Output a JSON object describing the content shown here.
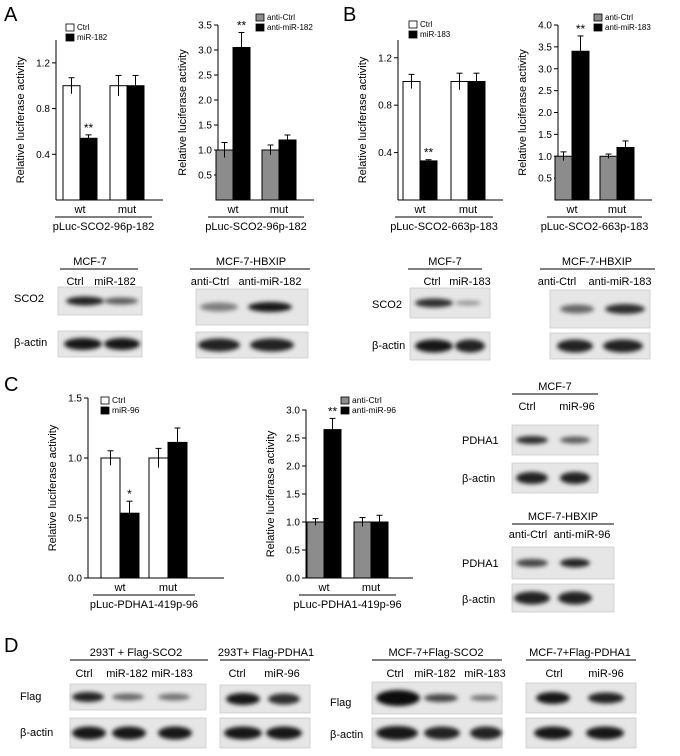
{
  "panel_labels": [
    "A",
    "B",
    "C",
    "D"
  ],
  "y_axis_label": "Relative luciferase activity",
  "chart_data": [
    {
      "id": "A1",
      "type": "bar",
      "panel": "A",
      "categories": [
        "wt",
        "mut"
      ],
      "xlabel": "pLuc-SCO2-96p-182",
      "ylim": [
        0,
        1.4
      ],
      "yticks": [
        0.4,
        0.8,
        1.2
      ],
      "series": [
        {
          "name": "Ctrl",
          "color": "#ffffff",
          "values": [
            1.0,
            1.0
          ],
          "errors": [
            0.07,
            0.09
          ]
        },
        {
          "name": "miR-182",
          "color": "#000000",
          "values": [
            0.54,
            1.0
          ],
          "errors": [
            0.03,
            0.09
          ]
        }
      ],
      "annotations": [
        {
          "series": 1,
          "category": 0,
          "text": "**"
        }
      ]
    },
    {
      "id": "A2",
      "type": "bar",
      "panel": "A",
      "categories": [
        "wt",
        "mut"
      ],
      "xlabel": "pLuc-SCO2-96p-182",
      "ylim": [
        0,
        3.5
      ],
      "yticks": [
        0.5,
        1.0,
        1.5,
        2.0,
        2.5,
        3.0,
        3.5
      ],
      "series": [
        {
          "name": "anti-Ctrl",
          "color": "#8c8c8c",
          "values": [
            1.0,
            1.0
          ],
          "errors": [
            0.15,
            0.1
          ]
        },
        {
          "name": "anti-miR-182",
          "color": "#000000",
          "values": [
            3.05,
            1.2
          ],
          "errors": [
            0.3,
            0.1
          ]
        }
      ],
      "annotations": [
        {
          "series": 1,
          "category": 0,
          "text": "**"
        }
      ]
    },
    {
      "id": "B1",
      "type": "bar",
      "panel": "B",
      "categories": [
        "wt",
        "mut"
      ],
      "xlabel": "pLuc-SCO2-663p-183",
      "ylim": [
        0,
        1.35
      ],
      "yticks": [
        0.4,
        0.8,
        1.2
      ],
      "series": [
        {
          "name": "Ctrl",
          "color": "#ffffff",
          "values": [
            1.0,
            1.0
          ],
          "errors": [
            0.06,
            0.07
          ]
        },
        {
          "name": "miR-183",
          "color": "#000000",
          "values": [
            0.33,
            1.0
          ],
          "errors": [
            0.01,
            0.07
          ]
        }
      ],
      "annotations": [
        {
          "series": 1,
          "category": 0,
          "text": "**"
        }
      ]
    },
    {
      "id": "B2",
      "type": "bar",
      "panel": "B",
      "categories": [
        "wt",
        "mut"
      ],
      "xlabel": "pLuc-SCO2-663p-183",
      "ylim": [
        0,
        4.0
      ],
      "yticks": [
        0.5,
        1.0,
        1.5,
        2.0,
        2.5,
        3.0,
        3.5,
        4.0
      ],
      "series": [
        {
          "name": "anti-Ctrl",
          "color": "#8c8c8c",
          "values": [
            1.0,
            1.0
          ],
          "errors": [
            0.1,
            0.05
          ]
        },
        {
          "name": "anti-miR-183",
          "color": "#000000",
          "values": [
            3.4,
            1.2
          ],
          "errors": [
            0.35,
            0.15
          ]
        }
      ],
      "annotations": [
        {
          "series": 1,
          "category": 0,
          "text": "**"
        }
      ]
    },
    {
      "id": "C1",
      "type": "bar",
      "panel": "C",
      "categories": [
        "wt",
        "mut"
      ],
      "xlabel": "pLuc-PDHA1-419p-96",
      "ylim": [
        0,
        1.5
      ],
      "yticks": [
        0.0,
        0.5,
        1.0,
        1.5
      ],
      "series": [
        {
          "name": "Ctrl",
          "color": "#ffffff",
          "values": [
            1.0,
            1.0
          ],
          "errors": [
            0.06,
            0.08
          ]
        },
        {
          "name": "miR-96",
          "color": "#000000",
          "values": [
            0.54,
            1.13
          ],
          "errors": [
            0.1,
            0.12
          ]
        }
      ],
      "annotations": [
        {
          "series": 1,
          "category": 0,
          "text": "*"
        }
      ]
    },
    {
      "id": "C2",
      "type": "bar",
      "panel": "C",
      "categories": [
        "wt",
        "mut"
      ],
      "xlabel": "pLuc-PDHA1-419p-96",
      "ylim": [
        0,
        3.0
      ],
      "yticks": [
        0.0,
        0.5,
        1.0,
        1.5,
        2.0,
        2.5,
        3.0
      ],
      "series": [
        {
          "name": "anti-Ctrl",
          "color": "#8c8c8c",
          "values": [
            1.0,
            1.0
          ],
          "errors": [
            0.06,
            0.08
          ]
        },
        {
          "name": "anti-miR-96",
          "color": "#000000",
          "values": [
            2.65,
            1.0
          ],
          "errors": [
            0.2,
            0.12
          ]
        }
      ],
      "annotations": [
        {
          "series": 1,
          "category": 0,
          "text": "**"
        }
      ]
    }
  ],
  "blot_groups": [
    {
      "id": "A-blot-1",
      "title": "MCF-7",
      "lanes": [
        "Ctrl",
        "miR-182"
      ],
      "rows": [
        "SCO2",
        "β-actin"
      ]
    },
    {
      "id": "A-blot-2",
      "title": "MCF-7-HBXIP",
      "lanes": [
        "anti-Ctrl",
        "anti-miR-182"
      ],
      "rows": []
    },
    {
      "id": "B-blot-1",
      "title": "MCF-7",
      "lanes": [
        "Ctrl",
        "miR-183"
      ],
      "rows": [
        "SCO2",
        "β-actin"
      ]
    },
    {
      "id": "B-blot-2",
      "title": "MCF-7-HBXIP",
      "lanes": [
        "anti-Ctrl",
        "anti-miR-183"
      ],
      "rows": []
    },
    {
      "id": "C-blot-1",
      "title": "MCF-7",
      "lanes": [
        "Ctrl",
        "miR-96"
      ],
      "rows": [
        "PDHA1",
        "β-actin"
      ]
    },
    {
      "id": "C-blot-2",
      "title": "MCF-7-HBXIP",
      "lanes": [
        "anti-Ctrl",
        "anti-miR-96"
      ],
      "rows": [
        "PDHA1",
        "β-actin"
      ]
    },
    {
      "id": "D-blot-1",
      "title": "293T + Flag-SCO2",
      "lanes": [
        "Ctrl",
        "miR-182",
        "miR-183"
      ],
      "rows": [
        "Flag",
        "β-actin"
      ]
    },
    {
      "id": "D-blot-2",
      "title": "293T+ Flag-PDHA1",
      "lanes": [
        "Ctrl",
        "miR-96"
      ],
      "rows": []
    },
    {
      "id": "D-blot-3",
      "title": "MCF-7+Flag-SCO2",
      "lanes": [
        "Ctrl",
        "miR-182",
        "miR-183"
      ],
      "rows": [
        "Flag",
        "β-actin"
      ]
    },
    {
      "id": "D-blot-4",
      "title": "MCF-7+Flag-PDHA1",
      "lanes": [
        "Ctrl",
        "miR-96"
      ],
      "rows": []
    }
  ]
}
